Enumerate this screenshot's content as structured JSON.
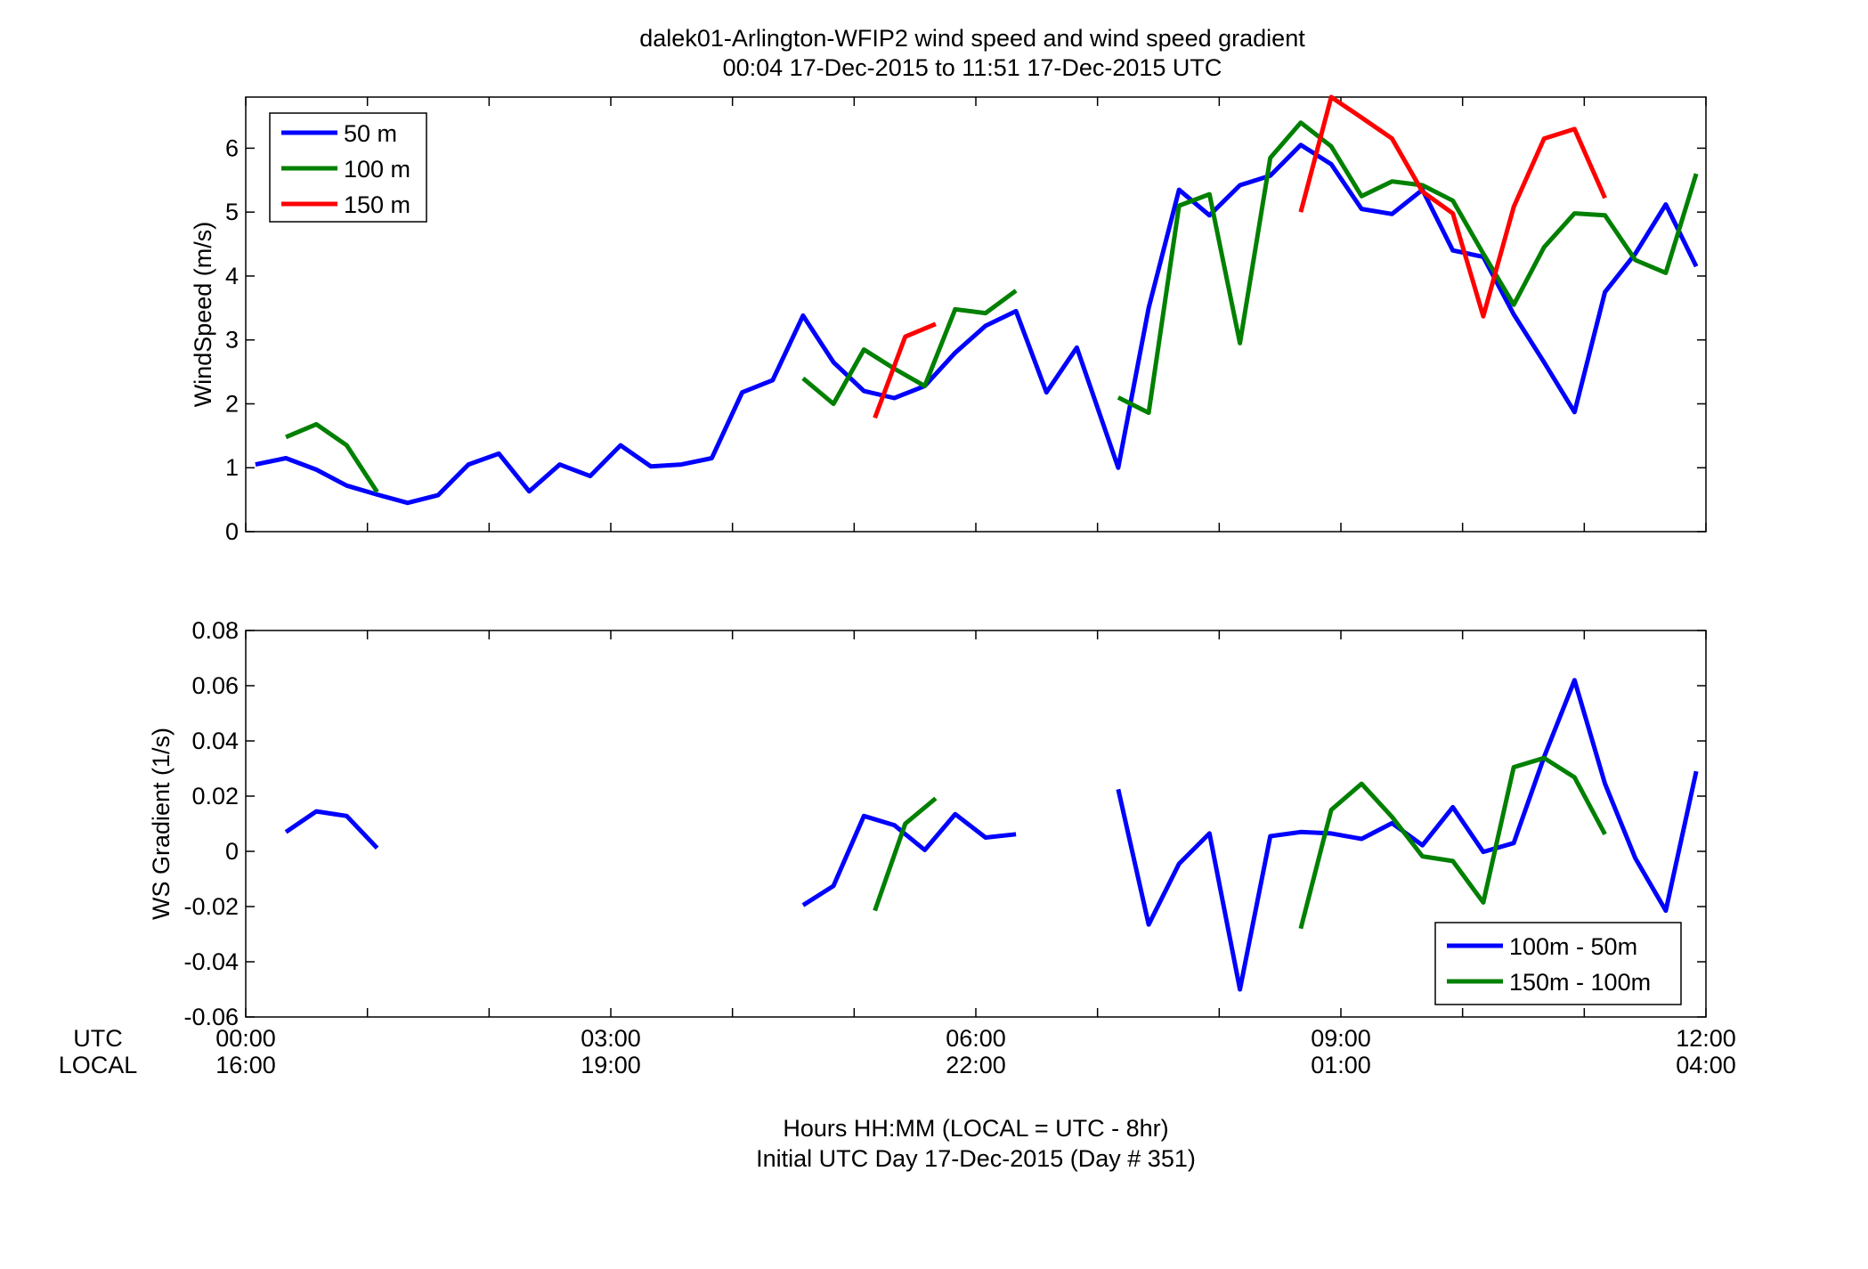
{
  "title_line1": "dalek01-Arlington-WFIP2  wind speed and wind speed gradient",
  "title_line2": "00:04 17-Dec-2015 to 11:51 17-Dec-2015  UTC",
  "utc_label": "UTC",
  "local_label": "LOCAL",
  "xlabel_line1": "Hours HH:MM  (LOCAL = UTC - 8hr)",
  "xlabel_line2": "Initial UTC Day 17-Dec-2015 (Day # 351)",
  "utc_ticks": [
    "00:00",
    "03:00",
    "06:00",
    "09:00",
    "12:00"
  ],
  "local_ticks": [
    "16:00",
    "19:00",
    "22:00",
    "01:00",
    "04:00"
  ],
  "chart_data": [
    {
      "type": "line",
      "ylabel": "WindSpeed (m/s)",
      "xlim": [
        0,
        12
      ],
      "ylim": [
        0,
        6.8
      ],
      "yticks": [
        0,
        1,
        2,
        3,
        4,
        5,
        6
      ],
      "grid": false,
      "legend_position": "top-left",
      "series": [
        {
          "name": "50 m",
          "color": "#0000ff",
          "points": [
            [
              0.08,
              1.05
            ],
            [
              0.33,
              1.15
            ],
            [
              0.58,
              0.97
            ],
            [
              0.83,
              0.72
            ],
            [
              1.08,
              0.58
            ],
            [
              1.33,
              0.45
            ],
            [
              1.58,
              0.57
            ],
            [
              1.83,
              1.05
            ],
            [
              2.08,
              1.22
            ],
            [
              2.33,
              0.63
            ],
            [
              2.58,
              1.05
            ],
            [
              2.83,
              0.87
            ],
            [
              3.08,
              1.35
            ],
            [
              3.33,
              1.02
            ],
            [
              3.58,
              1.05
            ],
            [
              3.83,
              1.15
            ],
            [
              4.08,
              2.18
            ],
            [
              4.33,
              2.37
            ],
            [
              4.58,
              3.38
            ],
            [
              4.83,
              2.65
            ],
            [
              5.08,
              2.2
            ],
            [
              5.33,
              2.09
            ],
            [
              5.58,
              2.28
            ],
            [
              5.83,
              2.8
            ],
            [
              6.08,
              3.22
            ],
            [
              6.33,
              3.45
            ],
            [
              6.58,
              2.18
            ],
            [
              6.83,
              2.88
            ],
            [
              7.17,
              1.0
            ],
            [
              7.42,
              3.5
            ],
            [
              7.67,
              5.35
            ],
            [
              7.92,
              4.95
            ],
            [
              8.17,
              5.42
            ],
            [
              8.42,
              5.57
            ],
            [
              8.67,
              6.05
            ],
            [
              8.92,
              5.75
            ],
            [
              9.17,
              5.05
            ],
            [
              9.42,
              4.97
            ],
            [
              9.67,
              5.35
            ],
            [
              9.92,
              4.4
            ],
            [
              10.17,
              4.3
            ],
            [
              10.42,
              3.4
            ],
            [
              10.67,
              2.65
            ],
            [
              10.92,
              1.87
            ],
            [
              11.17,
              3.75
            ],
            [
              11.42,
              4.35
            ],
            [
              11.67,
              5.12
            ],
            [
              11.92,
              4.15
            ]
          ]
        },
        {
          "name": "100 m",
          "color": "#008000",
          "points": [
            [
              0.33,
              1.48
            ],
            [
              0.58,
              1.68
            ],
            [
              0.83,
              1.35
            ],
            [
              1.08,
              0.62
            ],
            null,
            [
              4.58,
              2.4
            ],
            [
              4.83,
              2.0
            ],
            [
              5.08,
              2.85
            ],
            [
              5.33,
              2.55
            ],
            [
              5.58,
              2.28
            ],
            [
              5.83,
              3.48
            ],
            [
              6.08,
              3.42
            ],
            [
              6.33,
              3.77
            ],
            null,
            [
              7.17,
              2.1
            ],
            [
              7.42,
              1.86
            ],
            [
              7.67,
              5.1
            ],
            [
              7.92,
              5.28
            ],
            [
              8.17,
              2.95
            ],
            [
              8.42,
              5.85
            ],
            [
              8.67,
              6.4
            ],
            [
              8.92,
              6.03
            ],
            [
              9.17,
              5.25
            ],
            [
              9.42,
              5.48
            ],
            [
              9.67,
              5.42
            ],
            [
              9.92,
              5.18
            ],
            [
              10.17,
              4.35
            ],
            [
              10.42,
              3.55
            ],
            [
              10.67,
              4.45
            ],
            [
              10.92,
              4.98
            ],
            [
              11.17,
              4.95
            ],
            [
              11.42,
              4.25
            ],
            [
              11.67,
              4.05
            ],
            [
              11.92,
              5.6
            ]
          ]
        },
        {
          "name": "150 m",
          "color": "#ff0000",
          "points": [
            [
              5.17,
              1.78
            ],
            [
              5.42,
              3.05
            ],
            [
              5.67,
              3.25
            ],
            null,
            [
              8.67,
              5.0
            ],
            [
              8.92,
              6.8
            ],
            [
              9.17,
              6.48
            ],
            [
              9.42,
              6.15
            ],
            [
              9.67,
              5.32
            ],
            [
              9.92,
              4.98
            ],
            [
              10.17,
              3.37
            ],
            [
              10.42,
              5.08
            ],
            [
              10.67,
              6.15
            ],
            [
              10.92,
              6.3
            ],
            [
              11.17,
              5.22
            ]
          ]
        }
      ]
    },
    {
      "type": "line",
      "ylabel": "WS Gradient (1/s)",
      "xlim": [
        0,
        12
      ],
      "ylim": [
        -0.06,
        0.08
      ],
      "yticks": [
        -0.06,
        -0.04,
        -0.02,
        0,
        0.02,
        0.04,
        0.06,
        0.08
      ],
      "grid": false,
      "legend_position": "bottom-right",
      "series": [
        {
          "name": "100m - 50m",
          "color": "#0000ff",
          "points": [
            [
              0.33,
              0.007
            ],
            [
              0.58,
              0.0145
            ],
            [
              0.83,
              0.0128
            ],
            [
              1.08,
              0.0012
            ],
            null,
            [
              4.58,
              -0.0195
            ],
            [
              4.83,
              -0.0125
            ],
            [
              5.08,
              0.0128
            ],
            [
              5.33,
              0.0095
            ],
            [
              5.58,
              0.0005
            ],
            [
              5.83,
              0.0135
            ],
            [
              6.08,
              0.005
            ],
            [
              6.33,
              0.0062
            ],
            null,
            [
              7.17,
              0.0225
            ],
            [
              7.42,
              -0.0265
            ],
            [
              7.67,
              -0.0045
            ],
            [
              7.92,
              0.0065
            ],
            [
              8.17,
              -0.05
            ],
            [
              8.42,
              0.0055
            ],
            [
              8.67,
              0.007
            ],
            [
              8.92,
              0.0065
            ],
            [
              9.17,
              0.0045
            ],
            [
              9.42,
              0.0102
            ],
            [
              9.67,
              0.0022
            ],
            [
              9.92,
              0.016
            ],
            [
              10.17,
              -0.0002
            ],
            [
              10.42,
              0.003
            ],
            [
              10.67,
              0.0342
            ],
            [
              10.92,
              0.062
            ],
            [
              11.17,
              0.0245
            ],
            [
              11.42,
              -0.0025
            ],
            [
              11.67,
              -0.0215
            ],
            [
              11.92,
              0.029
            ]
          ]
        },
        {
          "name": "150m - 100m",
          "color": "#008000",
          "points": [
            [
              5.17,
              -0.0215
            ],
            [
              5.42,
              0.01
            ],
            [
              5.67,
              0.0192
            ],
            null,
            [
              8.67,
              -0.028
            ],
            [
              8.92,
              0.015
            ],
            [
              9.17,
              0.0245
            ],
            [
              9.42,
              0.0125
            ],
            [
              9.67,
              -0.0018
            ],
            [
              9.92,
              -0.0035
            ],
            [
              10.17,
              -0.0185
            ],
            [
              10.42,
              0.0305
            ],
            [
              10.67,
              0.0338
            ],
            [
              10.92,
              0.0268
            ],
            [
              11.17,
              0.0062
            ]
          ]
        }
      ]
    }
  ]
}
